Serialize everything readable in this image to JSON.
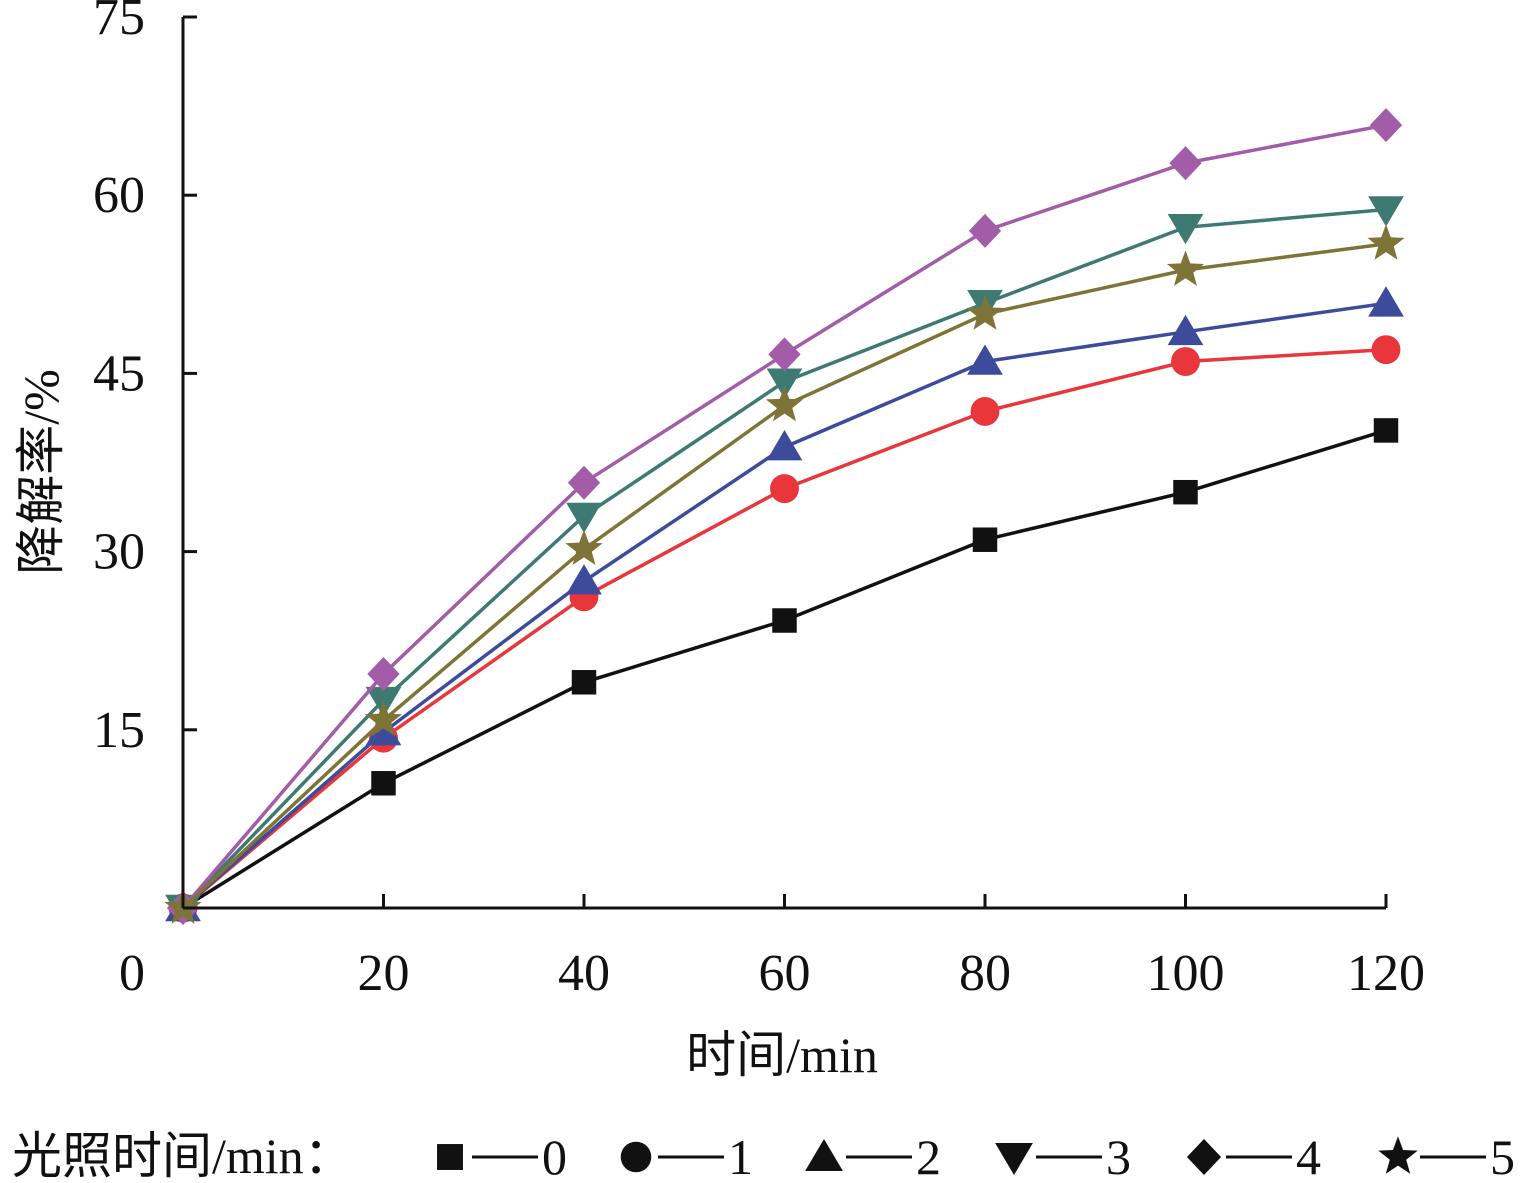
{
  "chart_data": {
    "type": "line",
    "xlabel": "时间/min",
    "ylabel": "降解率/%",
    "x": [
      0,
      20,
      40,
      60,
      80,
      100,
      120
    ],
    "x_ticks": [
      "0",
      "20",
      "40",
      "60",
      "80",
      "100",
      "120"
    ],
    "y_ticks": [
      "15",
      "30",
      "45",
      "60",
      "75"
    ],
    "xlim": [
      0,
      120
    ],
    "ylim": [
      0,
      75
    ],
    "grid": false,
    "legend_title": "光照时间/min：",
    "legend_position": "bottom",
    "series": [
      {
        "name": "0",
        "marker": "square",
        "color": "#111111",
        "values": [
          0,
          10.5,
          19,
          24.2,
          31,
          35,
          40.2
        ]
      },
      {
        "name": "1",
        "marker": "circle",
        "color": "#e8363b",
        "values": [
          0,
          14.3,
          26.2,
          35.3,
          41.8,
          46,
          47
        ]
      },
      {
        "name": "2",
        "marker": "triangle-up",
        "color": "#3d4b9b",
        "values": [
          0,
          14.8,
          27.5,
          38.8,
          46,
          48.5,
          50.9
        ]
      },
      {
        "name": "3",
        "marker": "triangle-down",
        "color": "#3f7a72",
        "values": [
          0,
          17.5,
          33,
          44.3,
          50.9,
          57.3,
          58.8
        ]
      },
      {
        "name": "4",
        "marker": "diamond",
        "color": "#a25ca8",
        "values": [
          0,
          19.7,
          35.8,
          46.6,
          57,
          62.7,
          65.9
        ]
      },
      {
        "name": "5",
        "marker": "star",
        "color": "#7e7438",
        "values": [
          0,
          15.8,
          30.2,
          42.3,
          50,
          53.7,
          55.9
        ]
      }
    ],
    "legend_marker_color": "#111111"
  }
}
